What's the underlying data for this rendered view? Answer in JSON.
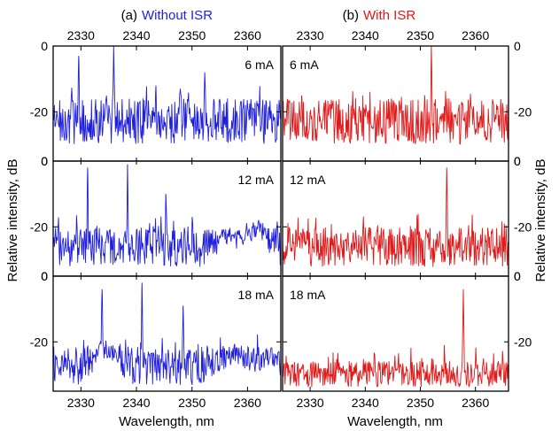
{
  "chart_data": {
    "type": "line",
    "xlabel": "Wavelength, nm",
    "ylabel": "Relative intensity, dB",
    "xlim": [
      2325,
      2366
    ],
    "xticks": [
      2330,
      2340,
      2350,
      2360
    ],
    "ylim": [
      -35,
      0
    ],
    "yticks": [
      0,
      -20
    ],
    "grid": false,
    "colors": {
      "without": "#1f1fdd",
      "with": "#e01818"
    },
    "panels": [
      {
        "label": "(a)",
        "title": "Without ISR",
        "color_key": "without",
        "subplots": [
          {
            "current": "6 mA",
            "noise_floor": -25,
            "noise_spread": 7,
            "peaks": [
              {
                "x": 2329.6,
                "y": -3
              },
              {
                "x": 2335.9,
                "y": 0
              },
              {
                "x": 2343.5,
                "y": -12
              },
              {
                "x": 2347.9,
                "y": -13
              },
              {
                "x": 2352.3,
                "y": -8
              }
            ]
          },
          {
            "current": "12 mA",
            "noise_floor": -28,
            "noise_spread": 6,
            "peaks": [
              {
                "x": 2331.2,
                "y": -2
              },
              {
                "x": 2338.4,
                "y": -1
              },
              {
                "x": 2345.3,
                "y": -10
              },
              {
                "x": 2362.0,
                "y": -18
              }
            ],
            "bumps": [
              {
                "x": 2356.5,
                "y": -23
              },
              {
                "x": 2361.5,
                "y": -21
              }
            ]
          },
          {
            "current": "18 mA",
            "noise_floor": -29,
            "noise_spread": 6,
            "peaks": [
              {
                "x": 2333.8,
                "y": -4
              },
              {
                "x": 2341.0,
                "y": -2
              },
              {
                "x": 2348.4,
                "y": -9
              }
            ],
            "bumps": [
              {
                "x": 2334.5,
                "y": -22
              },
              {
                "x": 2357.5,
                "y": -24
              },
              {
                "x": 2363.5,
                "y": -25
              }
            ]
          }
        ]
      },
      {
        "label": "(b)",
        "title": "With ISR",
        "color_key": "with",
        "subplots": [
          {
            "current": "6 mA",
            "noise_floor": -25,
            "noise_spread": 7,
            "peaks": [
              {
                "x": 2352.0,
                "y": 0
              }
            ]
          },
          {
            "current": "12 mA",
            "noise_floor": -28,
            "noise_spread": 6,
            "peaks": [
              {
                "x": 2354.8,
                "y": -2
              }
            ]
          },
          {
            "current": "18 mA",
            "noise_floor": -31,
            "noise_spread": 4,
            "peaks": [
              {
                "x": 2357.8,
                "y": -4
              }
            ]
          }
        ]
      }
    ]
  }
}
